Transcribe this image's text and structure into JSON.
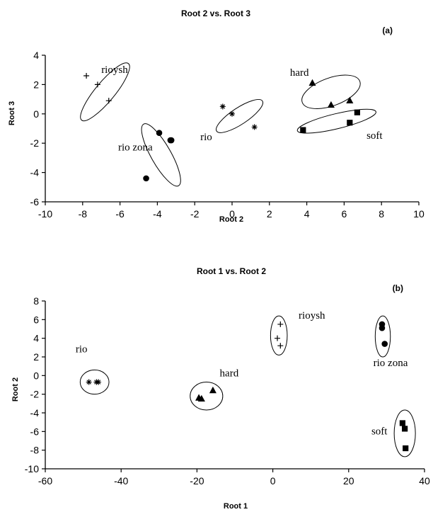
{
  "chart_data": [
    {
      "id": "a",
      "type": "scatter",
      "title": "Root 2 vs. Root 3",
      "panel_label": "(a)",
      "xlabel": "Root 2",
      "ylabel": "Root 3",
      "xlim": [
        -10,
        10
      ],
      "ylim": [
        -6,
        4
      ],
      "xticks": [
        -10,
        -8,
        -6,
        -4,
        -2,
        0,
        2,
        4,
        6,
        8,
        10
      ],
      "yticks": [
        -6,
        -4,
        -2,
        0,
        2,
        4
      ],
      "grid": false,
      "series": [
        {
          "name": "rioysh",
          "marker": "plus",
          "x": [
            -7.8,
            -7.2,
            -6.6
          ],
          "y": [
            2.6,
            2.0,
            0.9
          ],
          "ellipse": {
            "cx": -6.8,
            "cy": 1.5,
            "rx": 2.3,
            "ry": 0.55,
            "angle": 57
          }
        },
        {
          "name": "rio zona",
          "marker": "circle",
          "x": [
            -3.9,
            -3.3,
            -3.25,
            -4.6
          ],
          "y": [
            -1.3,
            -1.8,
            -1.8,
            -4.4
          ],
          "ellipse": {
            "cx": -3.8,
            "cy": -2.8,
            "rx": 2.3,
            "ry": 0.55,
            "angle": -66
          }
        },
        {
          "name": "rio",
          "marker": "asterisk",
          "x": [
            -0.5,
            0.0,
            1.2
          ],
          "y": [
            0.5,
            0.0,
            -0.9
          ],
          "ellipse": {
            "cx": 0.4,
            "cy": -0.15,
            "rx": 1.6,
            "ry": 0.5,
            "angle": 40
          }
        },
        {
          "name": "hard",
          "marker": "triangle",
          "x": [
            4.3,
            5.3,
            6.3
          ],
          "y": [
            2.1,
            0.6,
            0.9
          ],
          "ellipse": {
            "cx": 5.3,
            "cy": 1.5,
            "rx": 1.7,
            "ry": 0.9,
            "angle": 25
          }
        },
        {
          "name": "soft",
          "marker": "square",
          "x": [
            3.8,
            6.3,
            6.7
          ],
          "y": [
            -1.1,
            -0.6,
            0.1
          ],
          "ellipse": {
            "cx": 5.6,
            "cy": -0.5,
            "rx": 2.2,
            "ry": 0.5,
            "angle": 17
          }
        }
      ],
      "labels": [
        {
          "text": "rioysh",
          "x": -7.0,
          "y": 2.8
        },
        {
          "text": "rio zona",
          "x": -6.1,
          "y": -2.5
        },
        {
          "text": "rio",
          "x": -1.7,
          "y": -1.8
        },
        {
          "text": "hard",
          "x": 3.1,
          "y": 2.6
        },
        {
          "text": "soft",
          "x": 7.2,
          "y": -1.7
        }
      ]
    },
    {
      "id": "b",
      "type": "scatter",
      "title": "Root 1 vs. Root 2",
      "panel_label": "(b)",
      "xlabel": "Root 1",
      "ylabel": "Root 2",
      "xlim": [
        -60,
        40
      ],
      "ylim": [
        -10,
        8
      ],
      "xticks": [
        -60,
        -40,
        -20,
        0,
        20,
        40
      ],
      "yticks": [
        -10,
        -8,
        -6,
        -4,
        -2,
        0,
        2,
        4,
        6,
        8
      ],
      "grid": false,
      "series": [
        {
          "name": "rioysh",
          "marker": "plus",
          "x": [
            2.0,
            1.2,
            2.0
          ],
          "y": [
            5.5,
            4.0,
            3.2
          ],
          "ellipse": {
            "cx": 1.6,
            "cy": 4.3,
            "rx": 2.2,
            "ry": 2.1,
            "angle": 0
          }
        },
        {
          "name": "rio zona",
          "marker": "circle",
          "x": [
            28.8,
            28.8,
            29.5
          ],
          "y": [
            5.5,
            5.1,
            3.4
          ],
          "ellipse": {
            "cx": 29.0,
            "cy": 4.2,
            "rx": 2.0,
            "ry": 2.2,
            "angle": 0
          }
        },
        {
          "name": "rio",
          "marker": "asterisk",
          "x": [
            -48.5,
            -46.5,
            -46.0
          ],
          "y": [
            -0.7,
            -0.7,
            -0.7
          ],
          "ellipse": {
            "cx": -47.0,
            "cy": -0.7,
            "rx": 3.8,
            "ry": 1.3,
            "angle": 0
          }
        },
        {
          "name": "hard",
          "marker": "triangle",
          "x": [
            -19.5,
            -18.8,
            -15.8
          ],
          "y": [
            -2.4,
            -2.5,
            -1.6
          ],
          "ellipse": {
            "cx": -17.5,
            "cy": -2.2,
            "rx": 4.3,
            "ry": 1.5,
            "angle": 0
          }
        },
        {
          "name": "soft",
          "marker": "square",
          "x": [
            34.2,
            34.8,
            35.0
          ],
          "y": [
            -5.1,
            -5.7,
            -7.8
          ],
          "ellipse": {
            "cx": 34.8,
            "cy": -6.2,
            "rx": 2.8,
            "ry": 2.5,
            "angle": 0
          }
        }
      ],
      "labels": [
        {
          "text": "rioysh",
          "x": 6.8,
          "y": 6.1
        },
        {
          "text": "rio zona",
          "x": 26.5,
          "y": 1.0
        },
        {
          "text": "rio",
          "x": -52.0,
          "y": 2.5
        },
        {
          "text": "hard",
          "x": -14.0,
          "y": -0.1
        },
        {
          "text": "soft",
          "x": 26.0,
          "y": -6.3
        }
      ]
    }
  ]
}
